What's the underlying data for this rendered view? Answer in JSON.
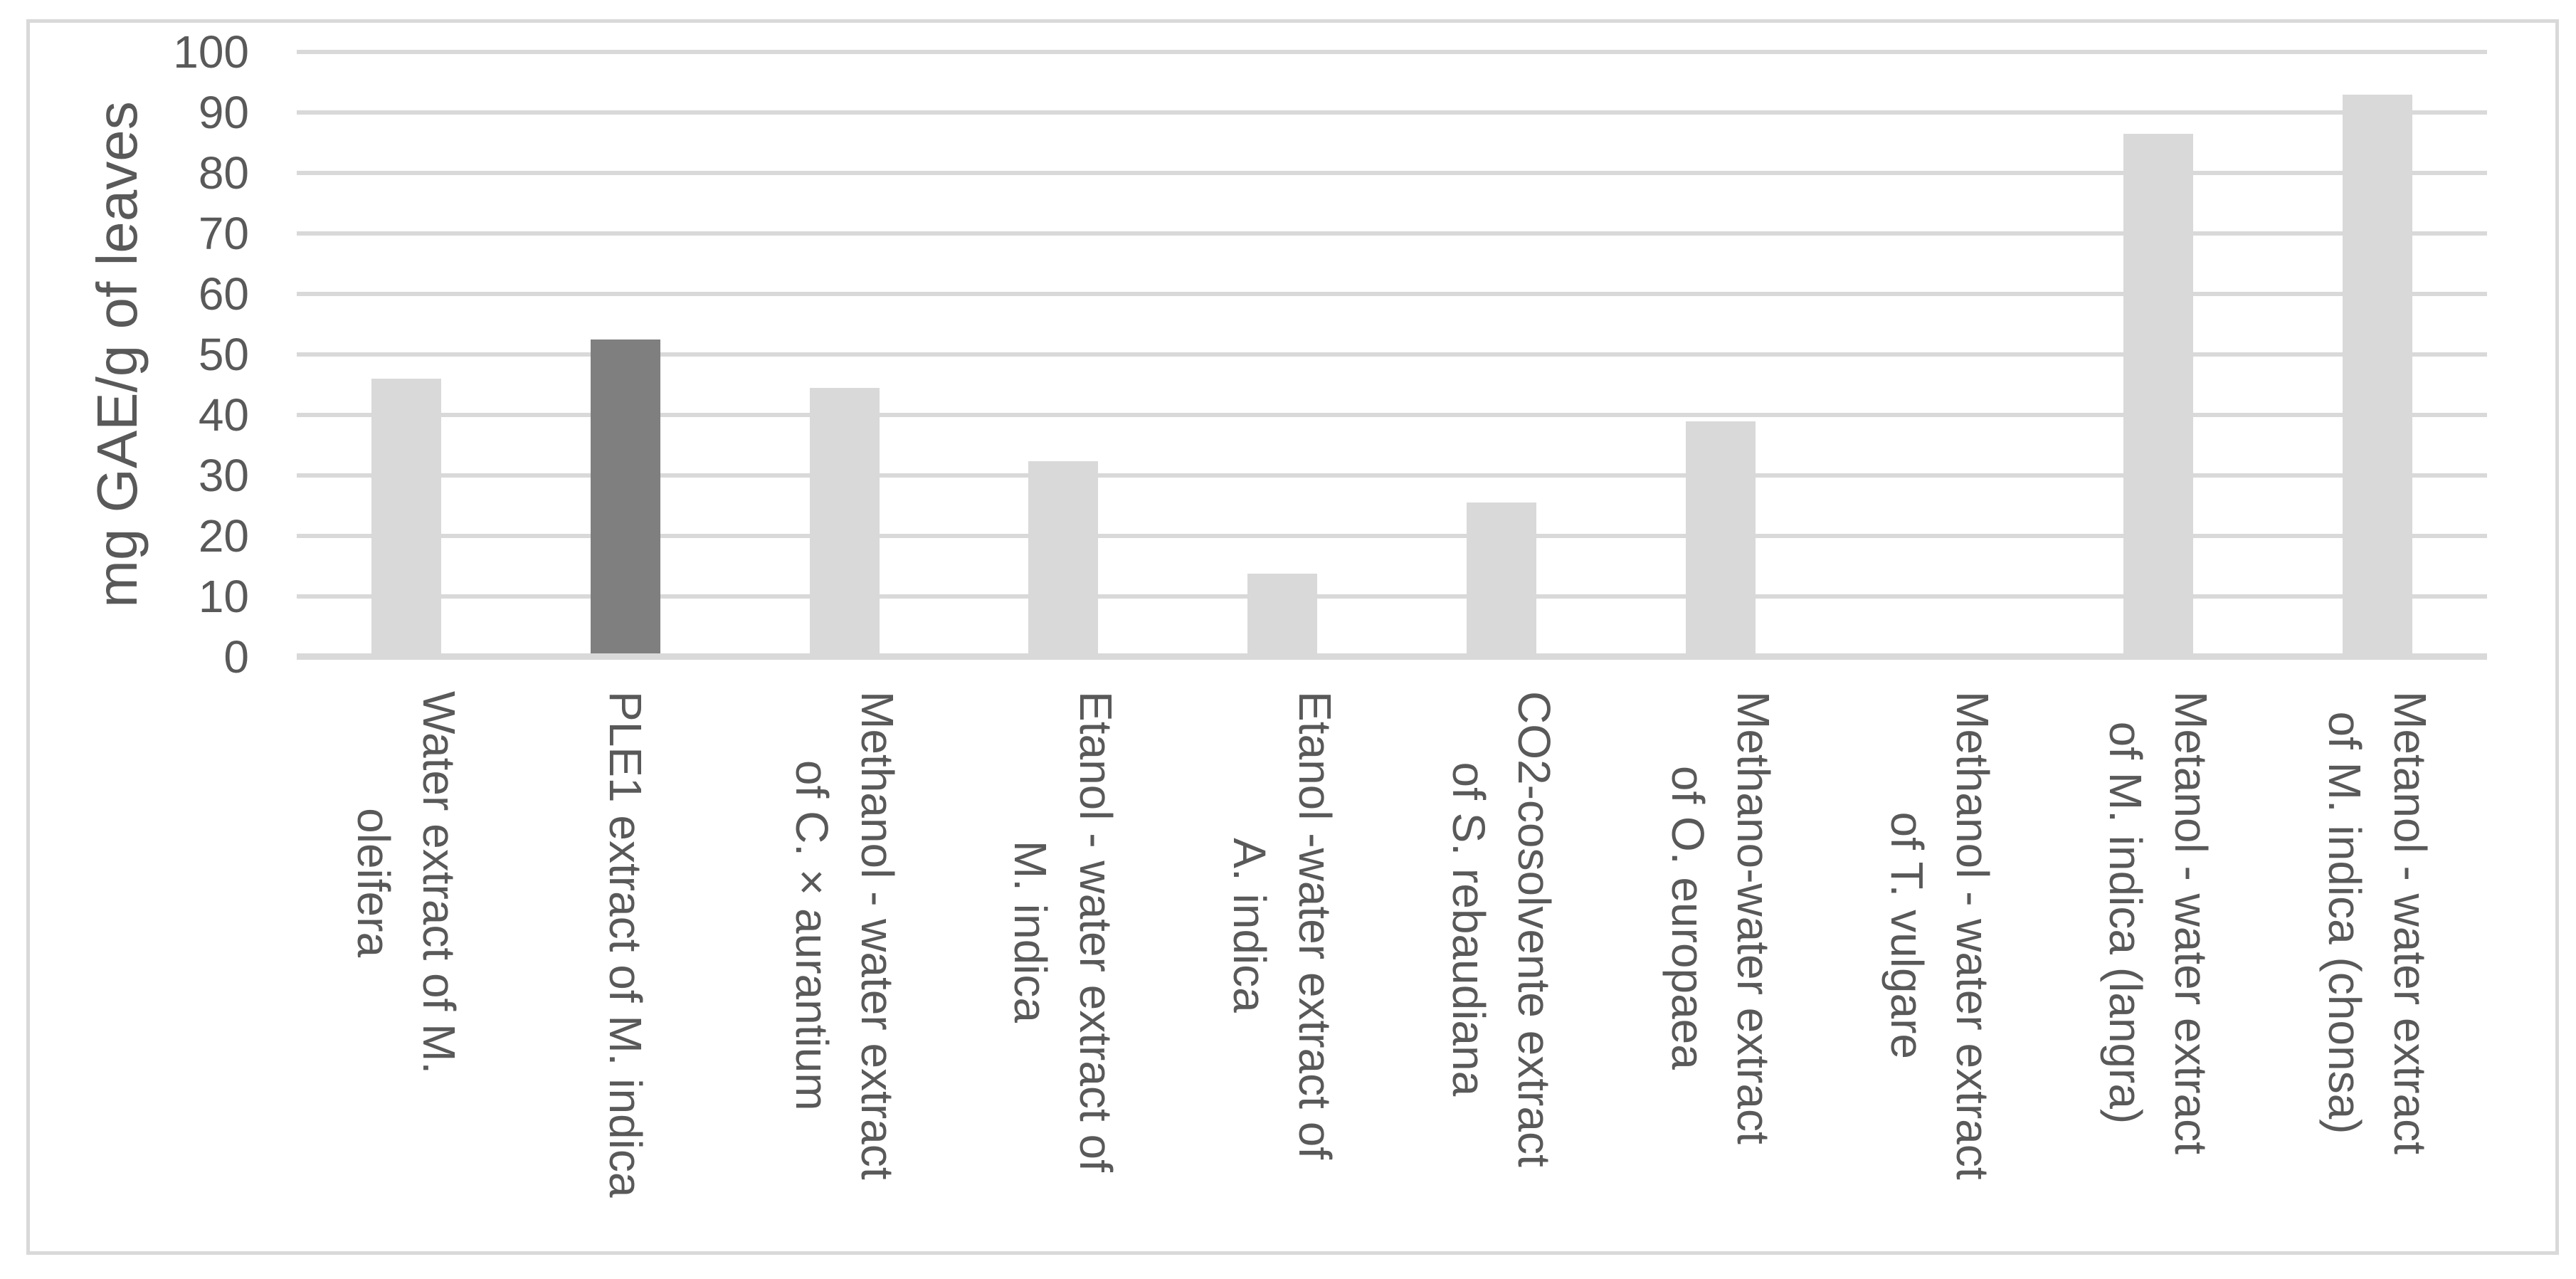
{
  "chart_data": {
    "type": "bar",
    "title": "",
    "xlabel": "",
    "ylabel": "mg GAE/g of leaves",
    "ylim": [
      0,
      100
    ],
    "ytick_step": 10,
    "yticks": [
      0,
      10,
      20,
      30,
      40,
      50,
      60,
      70,
      80,
      90,
      100
    ],
    "grid": "horizontal",
    "legend_position": "none",
    "categories": [
      "Water extract of M.\noleifera",
      "PLE1 extract of M. indica",
      "Methanol - water extract\nof C. × aurantium",
      "Etanol - water extract of\nM. indica",
      "Etanol -water extract of\nA. indica",
      "CO2-cosolvente extract\nof S. rebaudiana",
      "Methano-water extract\nof O. europaea",
      "Methanol - water extract\nof T. vulgare",
      "Metanol - water extract\nof M. indica (langra)",
      "Metanol - water extract\nof M. indica (chonsa)"
    ],
    "values": [
      46,
      52.5,
      44.5,
      32.3,
      13.8,
      25.5,
      39,
      0,
      86.5,
      93
    ],
    "highlight_index": 1
  },
  "colors": {
    "bar_default": "#d9d9d9",
    "bar_highlight": "#7f7f7f",
    "gridline": "#d9d9d9",
    "axis_line": "#d9d9d9",
    "chart_border": "#d9d9d9",
    "text": "#595959",
    "background": "#ffffff"
  }
}
